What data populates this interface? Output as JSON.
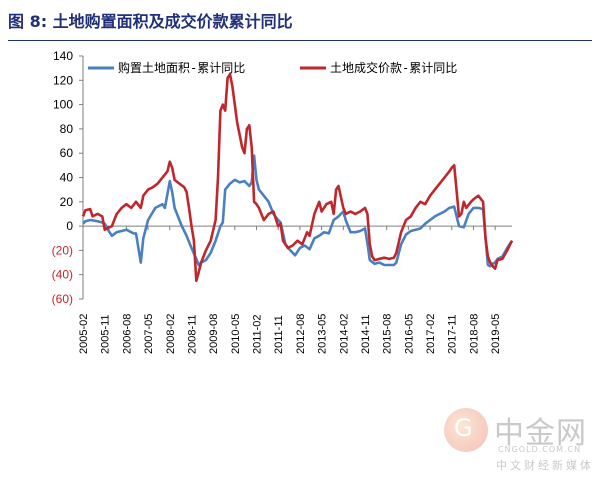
{
  "figure": {
    "title": "图 8:  土地购置面积及成交价款累计同比"
  },
  "watermark": {
    "logo_glyph": "G",
    "name": "中金网",
    "url": "CNGOLD.COM.CN",
    "sub": "中文财经新媒体"
  },
  "chart_data": {
    "type": "line",
    "title": "",
    "xlabel": "",
    "ylabel": "",
    "ylim": [
      -60,
      140
    ],
    "yticks": [
      140,
      120,
      100,
      80,
      60,
      40,
      20,
      0,
      -20,
      -40,
      -60
    ],
    "ytick_labels": [
      "140",
      "120",
      "100",
      "80",
      "60",
      "40",
      "20",
      "0",
      "(20)",
      "(40)",
      "(60)"
    ],
    "negative_tick_color": "#c0272d",
    "x_start": "2005-02",
    "x_end": "2019-12",
    "xtick_labels": [
      "2005-02",
      "2005-11",
      "2006-08",
      "2007-05",
      "2008-02",
      "2008-11",
      "2009-08",
      "2010-05",
      "2011-02",
      "2011-11",
      "2012-08",
      "2013-05",
      "2014-02",
      "2014-11",
      "2015-08",
      "2016-05",
      "2017-02",
      "2017-11",
      "2018-08",
      "2019-05"
    ],
    "grid": false,
    "legend_position": "top",
    "series": [
      {
        "name": "购置土地面积-累计同比",
        "color": "#4a7fc1",
        "points": [
          [
            "2005-02",
            2
          ],
          [
            "2005-03",
            4
          ],
          [
            "2005-05",
            5
          ],
          [
            "2005-08",
            4
          ],
          [
            "2005-10",
            3
          ],
          [
            "2005-11",
            2
          ],
          [
            "2006-01",
            -5
          ],
          [
            "2006-02",
            -8
          ],
          [
            "2006-04",
            -5
          ],
          [
            "2006-06",
            -4
          ],
          [
            "2006-08",
            -3
          ],
          [
            "2006-10",
            -5
          ],
          [
            "2006-11",
            -6
          ],
          [
            "2006-12",
            -6
          ],
          [
            "2007-02",
            -30
          ],
          [
            "2007-03",
            -10
          ],
          [
            "2007-05",
            5
          ],
          [
            "2007-08",
            15
          ],
          [
            "2007-11",
            18
          ],
          [
            "2007-12",
            15
          ],
          [
            "2008-02",
            37
          ],
          [
            "2008-03",
            28
          ],
          [
            "2008-04",
            15
          ],
          [
            "2008-05",
            10
          ],
          [
            "2008-07",
            0
          ],
          [
            "2008-09",
            -8
          ],
          [
            "2008-11",
            -18
          ],
          [
            "2009-01",
            -27
          ],
          [
            "2009-02",
            -32
          ],
          [
            "2009-03",
            -30
          ],
          [
            "2009-05",
            -28
          ],
          [
            "2009-07",
            -22
          ],
          [
            "2009-09",
            -12
          ],
          [
            "2009-11",
            0
          ],
          [
            "2009-12",
            3
          ],
          [
            "2010-01",
            30
          ],
          [
            "2010-03",
            35
          ],
          [
            "2010-05",
            38
          ],
          [
            "2010-07",
            36
          ],
          [
            "2010-09",
            37
          ],
          [
            "2010-11",
            33
          ],
          [
            "2010-12",
            36
          ],
          [
            "2011-01",
            58
          ],
          [
            "2011-02",
            38
          ],
          [
            "2011-03",
            30
          ],
          [
            "2011-05",
            25
          ],
          [
            "2011-07",
            20
          ],
          [
            "2011-09",
            10
          ],
          [
            "2011-11",
            5
          ],
          [
            "2011-12",
            3
          ],
          [
            "2012-02",
            -15
          ],
          [
            "2012-04",
            -20
          ],
          [
            "2012-06",
            -24
          ],
          [
            "2012-08",
            -18
          ],
          [
            "2012-10",
            -16
          ],
          [
            "2012-12",
            -19
          ],
          [
            "2013-02",
            -10
          ],
          [
            "2013-04",
            -8
          ],
          [
            "2013-06",
            -5
          ],
          [
            "2013-08",
            -6
          ],
          [
            "2013-10",
            5
          ],
          [
            "2013-12",
            8
          ],
          [
            "2014-02",
            12
          ],
          [
            "2014-03",
            5
          ],
          [
            "2014-05",
            -5
          ],
          [
            "2014-07",
            -5
          ],
          [
            "2014-09",
            -4
          ],
          [
            "2014-11",
            -2
          ],
          [
            "2014-12",
            -14
          ],
          [
            "2015-01",
            -28
          ],
          [
            "2015-03",
            -31
          ],
          [
            "2015-05",
            -30
          ],
          [
            "2015-07",
            -32
          ],
          [
            "2015-09",
            -32
          ],
          [
            "2015-11",
            -32
          ],
          [
            "2015-12",
            -30
          ],
          [
            "2016-02",
            -15
          ],
          [
            "2016-04",
            -7
          ],
          [
            "2016-06",
            -4
          ],
          [
            "2016-08",
            -3
          ],
          [
            "2016-10",
            -2
          ],
          [
            "2016-12",
            2
          ],
          [
            "2017-02",
            5
          ],
          [
            "2017-04",
            8
          ],
          [
            "2017-06",
            10
          ],
          [
            "2017-08",
            12
          ],
          [
            "2017-10",
            15
          ],
          [
            "2017-12",
            16
          ],
          [
            "2018-02",
            0
          ],
          [
            "2018-04",
            -1
          ],
          [
            "2018-06",
            10
          ],
          [
            "2018-08",
            15
          ],
          [
            "2018-10",
            15
          ],
          [
            "2018-12",
            14
          ],
          [
            "2019-02",
            -32
          ],
          [
            "2019-03",
            -33
          ],
          [
            "2019-04",
            -31
          ],
          [
            "2019-05",
            -30
          ],
          [
            "2019-06",
            -27
          ],
          [
            "2019-08",
            -25
          ],
          [
            "2019-10",
            -18
          ],
          [
            "2019-12",
            -12
          ]
        ]
      },
      {
        "name": "土地成交价款-累计同比",
        "color": "#c0272d",
        "points": [
          [
            "2005-02",
            8
          ],
          [
            "2005-03",
            13
          ],
          [
            "2005-05",
            14
          ],
          [
            "2005-06",
            8
          ],
          [
            "2005-08",
            10
          ],
          [
            "2005-10",
            8
          ],
          [
            "2005-11",
            -3
          ],
          [
            "2006-02",
            0
          ],
          [
            "2006-04",
            10
          ],
          [
            "2006-06",
            15
          ],
          [
            "2006-08",
            18
          ],
          [
            "2006-10",
            15
          ],
          [
            "2006-12",
            20
          ],
          [
            "2007-02",
            15
          ],
          [
            "2007-03",
            25
          ],
          [
            "2007-05",
            30
          ],
          [
            "2007-07",
            32
          ],
          [
            "2007-09",
            35
          ],
          [
            "2007-11",
            40
          ],
          [
            "2008-01",
            45
          ],
          [
            "2008-02",
            53
          ],
          [
            "2008-03",
            48
          ],
          [
            "2008-04",
            38
          ],
          [
            "2008-06",
            35
          ],
          [
            "2008-08",
            32
          ],
          [
            "2008-09",
            28
          ],
          [
            "2008-10",
            15
          ],
          [
            "2008-11",
            0
          ],
          [
            "2008-12",
            -12
          ],
          [
            "2009-01",
            -45
          ],
          [
            "2009-02",
            -38
          ],
          [
            "2009-03",
            -30
          ],
          [
            "2009-05",
            -20
          ],
          [
            "2009-07",
            -12
          ],
          [
            "2009-09",
            5
          ],
          [
            "2009-10",
            40
          ],
          [
            "2009-11",
            95
          ],
          [
            "2009-12",
            100
          ],
          [
            "2010-01",
            95
          ],
          [
            "2010-02",
            122
          ],
          [
            "2010-03",
            125
          ],
          [
            "2010-04",
            115
          ],
          [
            "2010-05",
            100
          ],
          [
            "2010-06",
            85
          ],
          [
            "2010-07",
            75
          ],
          [
            "2010-08",
            65
          ],
          [
            "2010-09",
            60
          ],
          [
            "2010-10",
            80
          ],
          [
            "2010-11",
            83
          ],
          [
            "2010-12",
            65
          ],
          [
            "2011-01",
            20
          ],
          [
            "2011-02",
            18
          ],
          [
            "2011-03",
            15
          ],
          [
            "2011-05",
            5
          ],
          [
            "2011-07",
            10
          ],
          [
            "2011-09",
            12
          ],
          [
            "2011-11",
            0
          ],
          [
            "2011-12",
            2
          ],
          [
            "2012-01",
            -12
          ],
          [
            "2012-03",
            -18
          ],
          [
            "2012-05",
            -16
          ],
          [
            "2012-07",
            -12
          ],
          [
            "2012-09",
            -15
          ],
          [
            "2012-11",
            -5
          ],
          [
            "2012-12",
            -8
          ],
          [
            "2013-02",
            10
          ],
          [
            "2013-03",
            15
          ],
          [
            "2013-04",
            20
          ],
          [
            "2013-05",
            12
          ],
          [
            "2013-07",
            18
          ],
          [
            "2013-09",
            20
          ],
          [
            "2013-10",
            10
          ],
          [
            "2013-11",
            30
          ],
          [
            "2013-12",
            33
          ],
          [
            "2014-02",
            15
          ],
          [
            "2014-03",
            10
          ],
          [
            "2014-05",
            12
          ],
          [
            "2014-07",
            10
          ],
          [
            "2014-09",
            12
          ],
          [
            "2014-11",
            15
          ],
          [
            "2014-12",
            10
          ],
          [
            "2015-01",
            -15
          ],
          [
            "2015-02",
            -25
          ],
          [
            "2015-03",
            -28
          ],
          [
            "2015-05",
            -27
          ],
          [
            "2015-07",
            -26
          ],
          [
            "2015-09",
            -27
          ],
          [
            "2015-11",
            -26
          ],
          [
            "2015-12",
            -22
          ],
          [
            "2016-02",
            -5
          ],
          [
            "2016-04",
            5
          ],
          [
            "2016-06",
            8
          ],
          [
            "2016-08",
            15
          ],
          [
            "2016-10",
            20
          ],
          [
            "2016-12",
            18
          ],
          [
            "2017-02",
            25
          ],
          [
            "2017-04",
            30
          ],
          [
            "2017-06",
            35
          ],
          [
            "2017-08",
            40
          ],
          [
            "2017-10",
            45
          ],
          [
            "2017-11",
            48
          ],
          [
            "2017-12",
            50
          ],
          [
            "2018-02",
            8
          ],
          [
            "2018-03",
            10
          ],
          [
            "2018-04",
            20
          ],
          [
            "2018-05",
            15
          ],
          [
            "2018-07",
            20
          ],
          [
            "2018-08",
            22
          ],
          [
            "2018-10",
            25
          ],
          [
            "2018-12",
            20
          ],
          [
            "2019-01",
            -10
          ],
          [
            "2019-02",
            -25
          ],
          [
            "2019-03",
            -30
          ],
          [
            "2019-04",
            -33
          ],
          [
            "2019-05",
            -35
          ],
          [
            "2019-06",
            -28
          ],
          [
            "2019-08",
            -27
          ],
          [
            "2019-10",
            -20
          ],
          [
            "2019-12",
            -12
          ]
        ]
      }
    ]
  }
}
